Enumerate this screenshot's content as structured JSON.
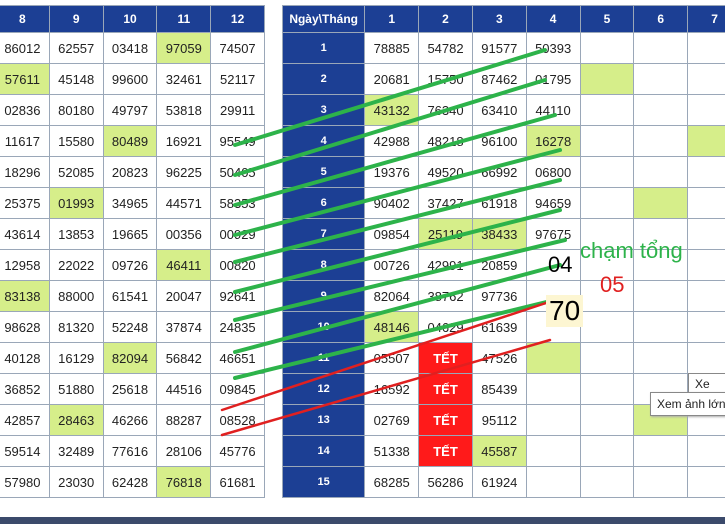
{
  "left_table": {
    "headers": [
      "8",
      "9",
      "10",
      "11",
      "12"
    ],
    "rows": [
      [
        "86012",
        "62557",
        "03418",
        "97059",
        "74507"
      ],
      [
        "57611",
        "45148",
        "99600",
        "32461",
        "52117"
      ],
      [
        "02836",
        "80180",
        "49797",
        "53818",
        "29911"
      ],
      [
        "11617",
        "15580",
        "80489",
        "16921",
        "95549"
      ],
      [
        "18296",
        "52085",
        "20823",
        "96225",
        "50405"
      ],
      [
        "25375",
        "01993",
        "34965",
        "44571",
        "58353"
      ],
      [
        "43614",
        "13853",
        "19665",
        "00356",
        "00929"
      ],
      [
        "12958",
        "22022",
        "09726",
        "46411",
        "00820"
      ],
      [
        "83138",
        "88000",
        "61541",
        "20047",
        "92641"
      ],
      [
        "98628",
        "81320",
        "52248",
        "37874",
        "24835"
      ],
      [
        "40128",
        "16129",
        "82094",
        "56842",
        "46651"
      ],
      [
        "36852",
        "51880",
        "25618",
        "44516",
        "09845"
      ],
      [
        "42857",
        "28463",
        "46266",
        "88287",
        "08528"
      ],
      [
        "59514",
        "32489",
        "77616",
        "28106",
        "45776"
      ],
      [
        "57980",
        "23030",
        "62428",
        "76818",
        "61681"
      ]
    ]
  },
  "right_table": {
    "headers": [
      "Ngày\\Tháng",
      "1",
      "2",
      "3",
      "4",
      "5",
      "6",
      "7"
    ],
    "rows": [
      [
        "1",
        "78885",
        "54782",
        "91577",
        "50393",
        "",
        "",
        ""
      ],
      [
        "2",
        "20681",
        "15750",
        "87462",
        "01795",
        "",
        "",
        ""
      ],
      [
        "3",
        "43132",
        "76340",
        "63410",
        "44110",
        "",
        "",
        ""
      ],
      [
        "4",
        "42988",
        "48218",
        "96100",
        "16278",
        "",
        "",
        ""
      ],
      [
        "5",
        "19376",
        "49520",
        "66992",
        "06800",
        "",
        "",
        ""
      ],
      [
        "6",
        "90402",
        "37427",
        "61918",
        "94659",
        "",
        "",
        ""
      ],
      [
        "7",
        "09854",
        "25119",
        "38433",
        "97675",
        "",
        "",
        ""
      ],
      [
        "8",
        "00726",
        "42991",
        "20859",
        "",
        "",
        "",
        ""
      ],
      [
        "9",
        "82064",
        "38762",
        "97736",
        "",
        "",
        "",
        ""
      ],
      [
        "10",
        "48146",
        "04629",
        "61639",
        "",
        "",
        "",
        ""
      ],
      [
        "11",
        "05507",
        "TẾT",
        "47526",
        "",
        "",
        "",
        ""
      ],
      [
        "12",
        "16592",
        "TẾT",
        "85439",
        "",
        "",
        "",
        ""
      ],
      [
        "13",
        "02769",
        "TẾT",
        "95112",
        "",
        "",
        "",
        ""
      ],
      [
        "14",
        "51338",
        "TẾT",
        "45587",
        "",
        "",
        "",
        ""
      ],
      [
        "15",
        "68285",
        "56286",
        "61924",
        "",
        "",
        "",
        ""
      ]
    ]
  },
  "annotations": {
    "cham_tong": "chạm tổng",
    "n04": "04",
    "n05": "05",
    "n70": "70"
  },
  "tooltip": {
    "top": "Xe",
    "text": "Xem ảnh lớn"
  },
  "colors": {
    "header": "#1c3f94",
    "highlight": "#d6ee8a",
    "tet": "#ff1a1a",
    "green_line": "#2db34a",
    "red_line": "#e02020"
  }
}
